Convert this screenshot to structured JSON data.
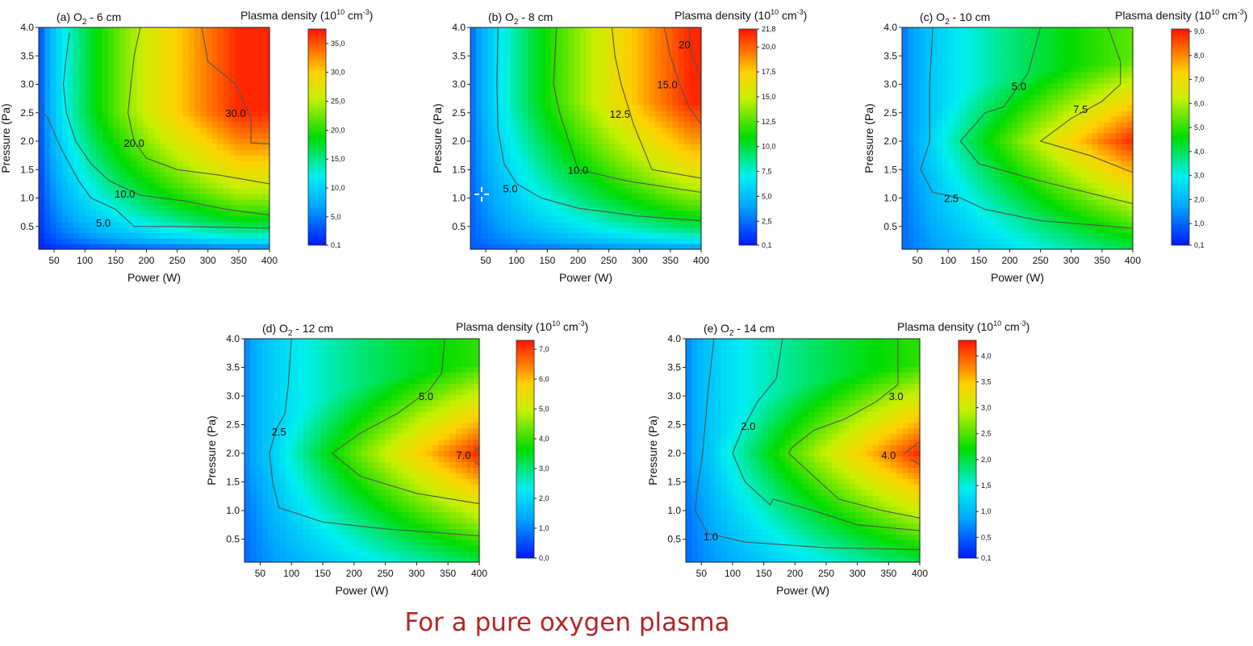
{
  "footer_text": "For a pure oxygen plasma",
  "colorbar_title": "Plasma density (10^10 cm^-3)",
  "colors": {
    "low": "#0026ff",
    "mid": "#00d800",
    "high": "#ff1a00",
    "contour": "#555555",
    "footer": "#b32626"
  },
  "chart_data": [
    {
      "type": "heatmap",
      "title": "(a) O2 - 6 cm",
      "xlabel": "Power (W)",
      "ylabel": "Pressure (Pa)",
      "xlim": [
        25,
        400
      ],
      "ylim": [
        0.1,
        4.0
      ],
      "xticks": [
        "50",
        "100",
        "150",
        "200",
        "250",
        "300",
        "350",
        "400"
      ],
      "yticks": [
        "0.5",
        "1.0",
        "1.5",
        "2.0",
        "2.5",
        "3.0",
        "3.5",
        "4.0"
      ],
      "colorbar": {
        "min": 0.1,
        "max": 37.5,
        "ticks": [
          "0,1",
          "5,0",
          "10,0",
          "15,0",
          "20,0",
          "25,0",
          "30,0",
          "35,0"
        ]
      },
      "contours": [
        {
          "level": "5.0",
          "points": [
            [
              25,
              2.6
            ],
            [
              40,
              2.4
            ],
            [
              60,
              1.9
            ],
            [
              75,
              1.6
            ],
            [
              90,
              1.3
            ],
            [
              110,
              1.0
            ],
            [
              150,
              0.8
            ],
            [
              180,
              0.5
            ],
            [
              250,
              0.5
            ],
            [
              400,
              0.47
            ]
          ],
          "label_at": [
            130,
            0.57
          ]
        },
        {
          "level": "10.0",
          "points": [
            [
              75,
              3.9
            ],
            [
              70,
              3.5
            ],
            [
              65,
              3.0
            ],
            [
              70,
              2.5
            ],
            [
              85,
              2.0
            ],
            [
              110,
              1.6
            ],
            [
              140,
              1.3
            ],
            [
              190,
              1.05
            ],
            [
              260,
              0.95
            ],
            [
              330,
              0.8
            ],
            [
              400,
              0.7
            ]
          ],
          "label_at": [
            165,
            1.08
          ]
        },
        {
          "level": "20.0",
          "points": [
            [
              190,
              4.0
            ],
            [
              180,
              3.5
            ],
            [
              175,
              3.0
            ],
            [
              170,
              2.5
            ],
            [
              180,
              2.0
            ],
            [
              200,
              1.7
            ],
            [
              250,
              1.5
            ],
            [
              320,
              1.4
            ],
            [
              400,
              1.25
            ]
          ],
          "label_at": [
            180,
            1.97
          ]
        },
        {
          "level": "30.0",
          "points": [
            [
              290,
              4.0
            ],
            [
              300,
              3.4
            ],
            [
              345,
              3.0
            ],
            [
              370,
              2.4
            ],
            [
              370,
              1.97
            ],
            [
              400,
              1.95
            ]
          ],
          "label_at": [
            345,
            2.5
          ]
        }
      ]
    },
    {
      "type": "heatmap",
      "title": "(b) O2 - 8 cm",
      "xlabel": "Power (W)",
      "ylabel": "Pressure (Pa)",
      "xlim": [
        25,
        400
      ],
      "ylim": [
        0.1,
        4.0
      ],
      "xticks": [
        "50",
        "100",
        "150",
        "200",
        "250",
        "300",
        "350",
        "400"
      ],
      "yticks": [
        "0.5",
        "1.0",
        "1.5",
        "2.0",
        "2.5",
        "3.0",
        "3.5",
        "4.0"
      ],
      "colorbar": {
        "min": 0.1,
        "max": 21.8,
        "ticks": [
          "0,1",
          "2,5",
          "5,0",
          "7,5",
          "10,0",
          "12,5",
          "15,0",
          "17,5",
          "20,0",
          "21,8"
        ]
      },
      "contours": [
        {
          "level": "5.0",
          "points": [
            [
              70,
              4.0
            ],
            [
              68,
              3.0
            ],
            [
              70,
              2.2
            ],
            [
              80,
              1.6
            ],
            [
              100,
              1.25
            ],
            [
              140,
              1.0
            ],
            [
              200,
              0.82
            ],
            [
              300,
              0.68
            ],
            [
              400,
              0.6
            ]
          ],
          "label_at": [
            90,
            1.17
          ]
        },
        {
          "level": "10.0",
          "points": [
            [
              165,
              4.0
            ],
            [
              160,
              3.0
            ],
            [
              170,
              2.5
            ],
            [
              185,
              2.0
            ],
            [
              200,
              1.5
            ],
            [
              280,
              1.3
            ],
            [
              400,
              1.1
            ]
          ],
          "label_at": [
            200,
            1.5
          ]
        },
        {
          "level": "12.5",
          "points": [
            [
              255,
              4.0
            ],
            [
              260,
              3.5
            ],
            [
              270,
              3.0
            ],
            [
              290,
              2.3
            ],
            [
              320,
              1.5
            ],
            [
              400,
              1.35
            ]
          ],
          "label_at": [
            268,
            2.48
          ]
        },
        {
          "level": "15.0",
          "points": [
            [
              340,
              4.0
            ],
            [
              350,
              3.5
            ],
            [
              365,
              3.0
            ],
            [
              380,
              2.6
            ],
            [
              400,
              2.3
            ]
          ],
          "label_at": [
            345,
            3.0
          ]
        },
        {
          "level": "20",
          "points": [
            [
              380,
              4.0
            ],
            [
              385,
              3.5
            ],
            [
              400,
              3.1
            ]
          ],
          "label_at": [
            373,
            3.7
          ]
        }
      ]
    },
    {
      "type": "heatmap",
      "title": "(c) O2 - 10 cm",
      "xlabel": "Power (W)",
      "ylabel": "Pressure (Pa)",
      "xlim": [
        25,
        400
      ],
      "ylim": [
        0.1,
        4.0
      ],
      "xticks": [
        "50",
        "100",
        "150",
        "200",
        "250",
        "300",
        "350",
        "400"
      ],
      "yticks": [
        "0.5",
        "1.0",
        "1.5",
        "2.0",
        "2.5",
        "3.0",
        "3.5",
        "4.0"
      ],
      "colorbar": {
        "min": 0.1,
        "max": 9.1,
        "ticks": [
          "0,1",
          "1,0",
          "2,0",
          "3,0",
          "4,0",
          "5,0",
          "6,0",
          "7,0",
          "8,0",
          "9,0"
        ]
      },
      "contours": [
        {
          "level": "2.5",
          "points": [
            [
              75,
              4.0
            ],
            [
              70,
              3.0
            ],
            [
              70,
              2.0
            ],
            [
              55,
              1.5
            ],
            [
              75,
              1.1
            ],
            [
              120,
              1.0
            ],
            [
              160,
              0.8
            ],
            [
              250,
              0.6
            ],
            [
              400,
              0.47
            ]
          ],
          "label_at": [
            105,
            1.0
          ]
        },
        {
          "level": "5.0",
          "points": [
            [
              250,
              4.0
            ],
            [
              230,
              3.2
            ],
            [
              190,
              2.6
            ],
            [
              160,
              2.5
            ],
            [
              120,
              2.0
            ],
            [
              150,
              1.6
            ],
            [
              250,
              1.3
            ],
            [
              400,
              0.9
            ]
          ],
          "label_at": [
            215,
            2.97
          ]
        },
        {
          "level": "7.5",
          "points": [
            [
              360,
              4.0
            ],
            [
              380,
              3.4
            ],
            [
              380,
              3.0
            ],
            [
              350,
              2.7
            ],
            [
              300,
              2.4
            ],
            [
              250,
              2.0
            ],
            [
              330,
              1.75
            ],
            [
              400,
              1.45
            ]
          ],
          "label_at": [
            315,
            2.57
          ]
        }
      ]
    },
    {
      "type": "heatmap",
      "title": "(d) O2 - 12 cm",
      "xlabel": "Power (W)",
      "ylabel": "Pressure (Pa)",
      "xlim": [
        25,
        400
      ],
      "ylim": [
        0.1,
        4.0
      ],
      "xticks": [
        "50",
        "100",
        "150",
        "200",
        "250",
        "300",
        "350",
        "400"
      ],
      "yticks": [
        "0.5",
        "1.0",
        "1.5",
        "2.0",
        "2.5",
        "3.0",
        "3.5",
        "4.0"
      ],
      "colorbar": {
        "min": 0.0,
        "max": 7.3,
        "ticks": [
          "0,0",
          "1,0",
          "2,0",
          "3,0",
          "4,0",
          "5,0",
          "6,0",
          "7,0"
        ]
      },
      "contours": [
        {
          "level": "2.5",
          "points": [
            [
              100,
              4.0
            ],
            [
              95,
              3.2
            ],
            [
              90,
              2.7
            ],
            [
              75,
              2.4
            ],
            [
              65,
              2.0
            ],
            [
              70,
              1.5
            ],
            [
              80,
              1.05
            ],
            [
              150,
              0.8
            ],
            [
              250,
              0.68
            ],
            [
              400,
              0.56
            ]
          ],
          "label_at": [
            80,
            2.38
          ]
        },
        {
          "level": "5.0",
          "points": [
            [
              345,
              4.0
            ],
            [
              340,
              3.4
            ],
            [
              320,
              3.1
            ],
            [
              270,
              2.7
            ],
            [
              210,
              2.35
            ],
            [
              165,
              2.0
            ],
            [
              210,
              1.6
            ],
            [
              300,
              1.3
            ],
            [
              400,
              1.12
            ]
          ],
          "label_at": [
            315,
            3.0
          ]
        },
        {
          "level": "7.0",
          "points": [
            [
              392,
              2.05
            ],
            [
              400,
              2.1
            ],
            [
              400,
              1.8
            ],
            [
              392,
              1.85
            ]
          ],
          "label_at": [
            375,
            1.97
          ]
        }
      ]
    },
    {
      "type": "heatmap",
      "title": "(e) O2 - 14 cm",
      "xlabel": "Power (W)",
      "ylabel": "Pressure (Pa)",
      "xlim": [
        25,
        400
      ],
      "ylim": [
        0.1,
        4.0
      ],
      "xticks": [
        "50",
        "100",
        "150",
        "200",
        "250",
        "300",
        "350",
        "400"
      ],
      "yticks": [
        "0.5",
        "1.0",
        "1.5",
        "2.0",
        "2.5",
        "3.0",
        "3.5",
        "4.0"
      ],
      "colorbar": {
        "min": 0.1,
        "max": 4.3,
        "ticks": [
          "0,1",
          "0,5",
          "1,0",
          "1,5",
          "2,0",
          "2,5",
          "3,0",
          "3,5",
          "4,0"
        ]
      },
      "contours": [
        {
          "level": "1.0",
          "points": [
            [
              70,
              4.0
            ],
            [
              60,
              3.0
            ],
            [
              52,
              2.0
            ],
            [
              45,
              1.5
            ],
            [
              40,
              1.0
            ],
            [
              60,
              0.6
            ],
            [
              120,
              0.45
            ],
            [
              250,
              0.35
            ],
            [
              400,
              0.32
            ]
          ],
          "label_at": [
            65,
            0.55
          ]
        },
        {
          "level": "2.0",
          "points": [
            [
              180,
              4.0
            ],
            [
              170,
              3.3
            ],
            [
              140,
              2.9
            ],
            [
              115,
              2.4
            ],
            [
              100,
              2.0
            ],
            [
              120,
              1.5
            ],
            [
              160,
              1.1
            ],
            [
              165,
              1.2
            ],
            [
              230,
              1.0
            ],
            [
              300,
              0.75
            ],
            [
              400,
              0.65
            ]
          ],
          "label_at": [
            125,
            2.48
          ]
        },
        {
          "level": "3.0",
          "points": [
            [
              365,
              4.0
            ],
            [
              365,
              3.2
            ],
            [
              330,
              2.9
            ],
            [
              280,
              2.6
            ],
            [
              230,
              2.4
            ],
            [
              195,
              2.1
            ],
            [
              190,
              2.0
            ],
            [
              230,
              1.6
            ],
            [
              270,
              1.2
            ],
            [
              340,
              1.0
            ],
            [
              400,
              0.87
            ]
          ],
          "label_at": [
            362,
            3.0
          ]
        },
        {
          "level": "4.0",
          "points": [
            [
              375,
              2.0
            ],
            [
              400,
              2.2
            ],
            [
              400,
              1.8
            ],
            [
              385,
              1.9
            ]
          ],
          "label_at": [
            350,
            1.97
          ]
        }
      ]
    }
  ]
}
